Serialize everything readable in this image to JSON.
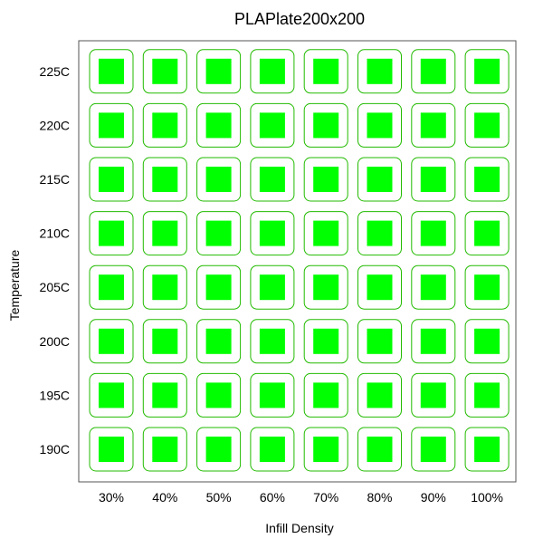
{
  "chart_data": {
    "type": "heatmap",
    "title": "PLAPlate200x200",
    "xlabel": "Infill Density",
    "ylabel": "Temperature",
    "x_categories": [
      "30%",
      "40%",
      "50%",
      "60%",
      "70%",
      "80%",
      "90%",
      "100%"
    ],
    "y_categories": [
      "190C",
      "195C",
      "200C",
      "205C",
      "210C",
      "215C",
      "220C",
      "225C"
    ],
    "grid": false,
    "legend": "none",
    "colors": {
      "cell_fill": "#00ff00",
      "cell_outline": "#22bb00",
      "frame": "#555555"
    }
  }
}
